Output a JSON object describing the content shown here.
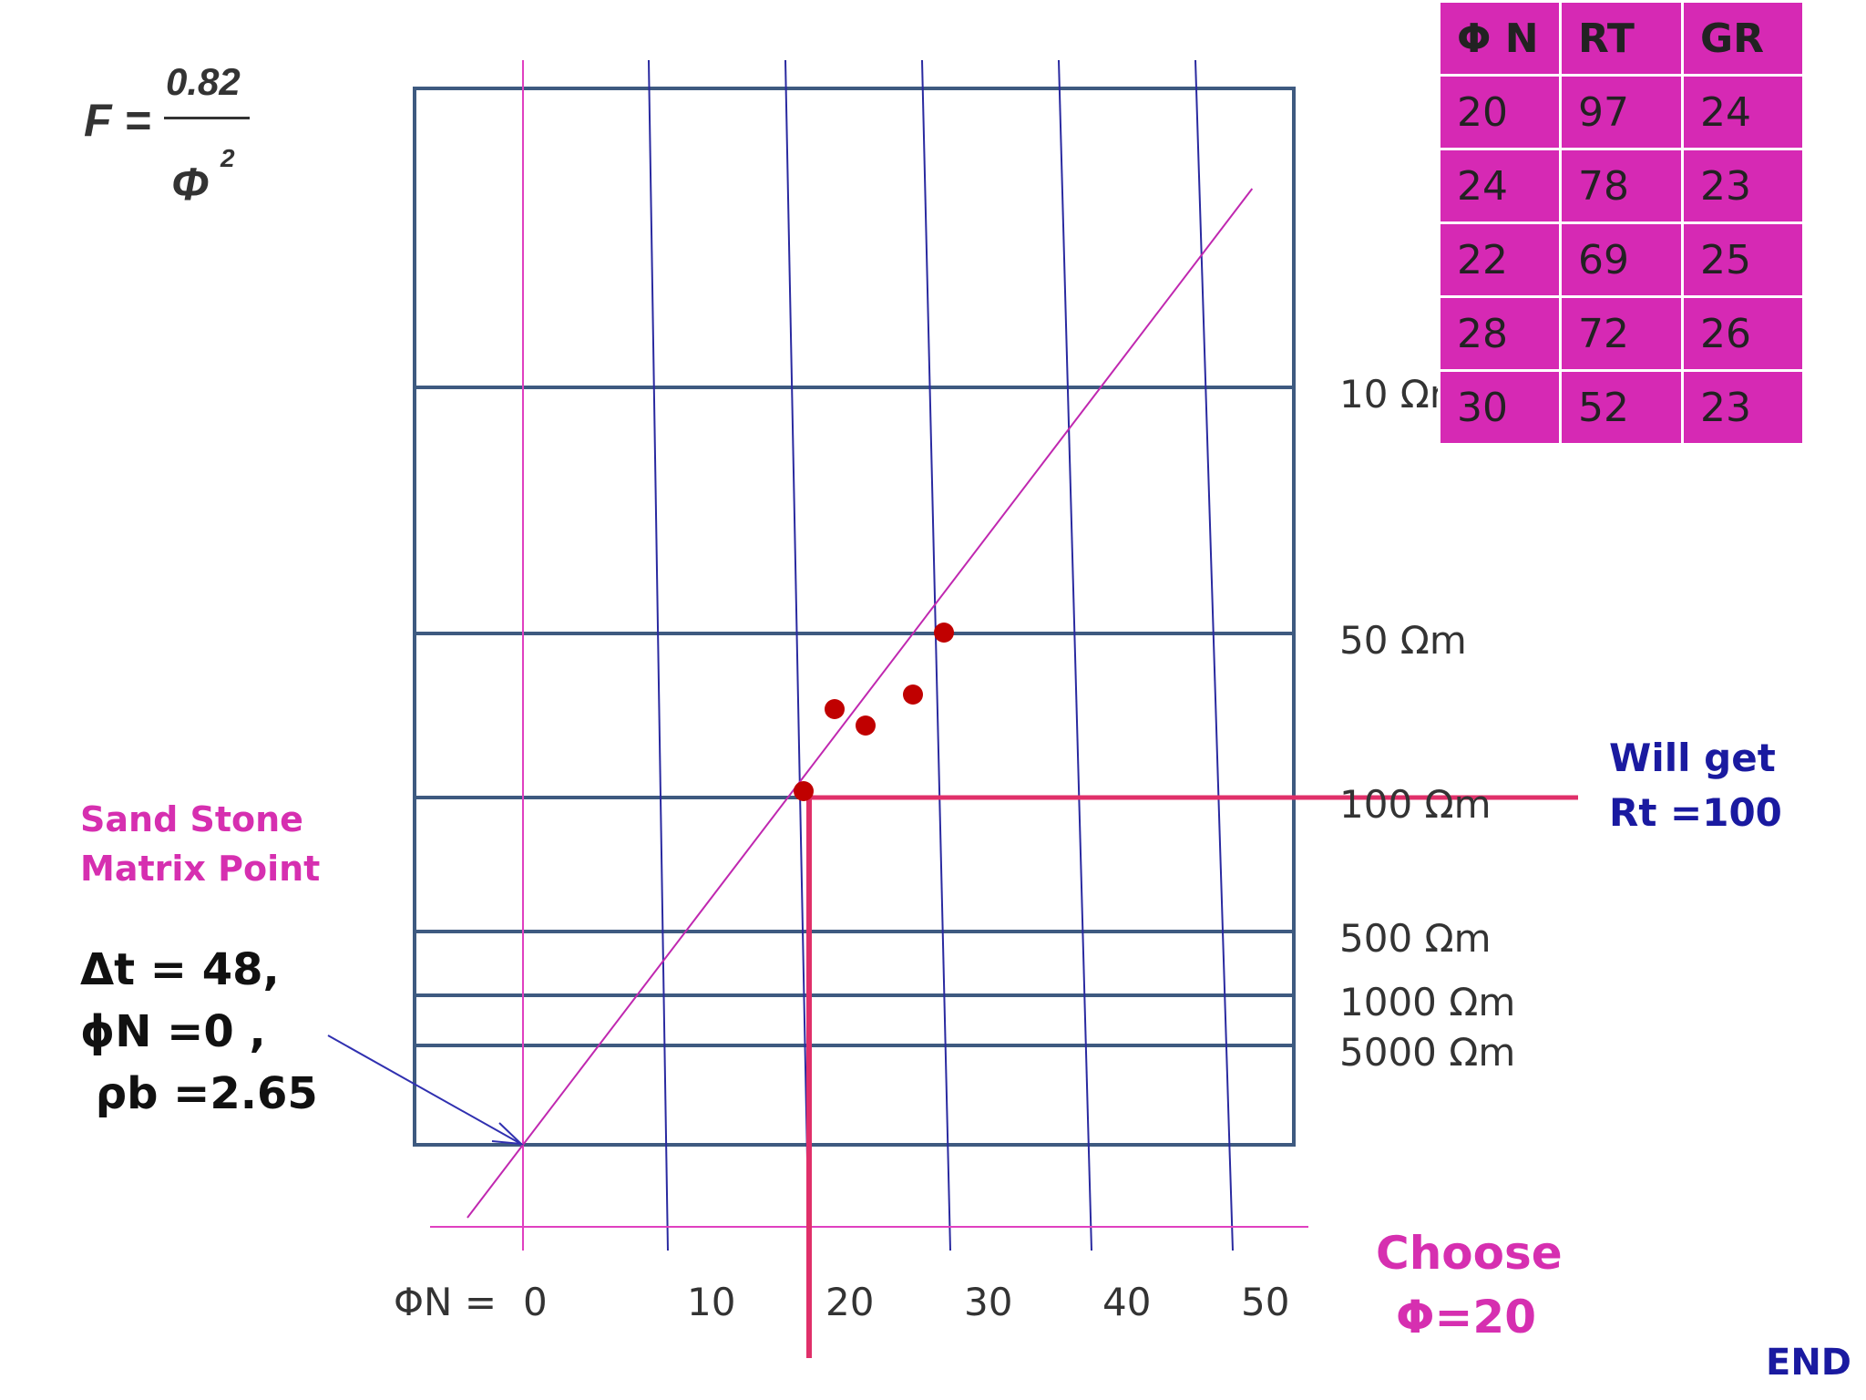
{
  "formula": {
    "lhs": "F =",
    "numerator": "0.82",
    "denominator": "Φ",
    "exponent": "2"
  },
  "data_table": {
    "headers": [
      "Φ N",
      "RT",
      "GR"
    ],
    "rows": [
      [
        "20",
        "97",
        "24"
      ],
      [
        "24",
        "78",
        "23"
      ],
      [
        "22",
        "69",
        "25"
      ],
      [
        "28",
        "72",
        "26"
      ],
      [
        "30",
        "52",
        "23"
      ]
    ]
  },
  "annotations": {
    "matrix_title_line1": "Sand Stone",
    "matrix_title_line2": "Matrix Point",
    "matrix_values": "Δt = 48,\nϕN =0 ,\n ρb =2.65",
    "rt_line1": "Will get",
    "rt_line2": "Rt =100",
    "choose_line1": "Choose",
    "choose_line2": "Φ=20",
    "end": "END"
  },
  "chart_data": {
    "type": "scatter",
    "title": "",
    "xlabel": "ΦN =",
    "x_ticks": [
      0,
      10,
      20,
      30,
      40,
      50
    ],
    "y_labels": [
      "10 Ωm",
      "50 Ωm",
      "100 Ωm",
      "500 Ωm",
      "1000 Ωm",
      "5000 Ωm"
    ],
    "points": [
      {
        "phi": 21.8,
        "rt": 69
      },
      {
        "phi": 23.8,
        "rt": 72
      },
      {
        "phi": 27.3,
        "rt": 78
      },
      {
        "phi": 30,
        "rt": 50
      },
      {
        "phi": 20,
        "rt": 100
      }
    ],
    "trend_line": {
      "from": {
        "phi": 0,
        "rt_label": "matrix point"
      },
      "through": {
        "phi": 30,
        "rt": 50
      }
    },
    "readout": {
      "phi": 20,
      "rt": 100
    },
    "colors": {
      "grid": "#3e5a80",
      "vertical": "#2a2aa0",
      "trend": "#c028b0",
      "points": "#c00000",
      "readout": "#e0306a",
      "arrow": "#3030b0"
    }
  }
}
